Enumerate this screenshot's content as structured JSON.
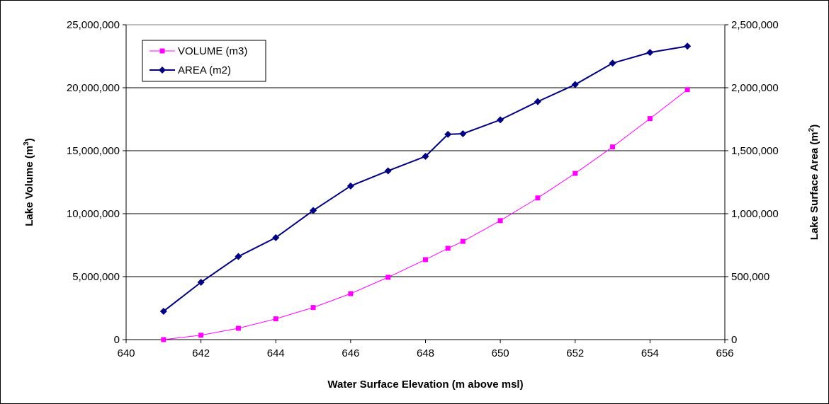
{
  "chart_data": {
    "type": "line",
    "xlabel": "Water Surface Elevation (m above msl)",
    "ylabel_left": {
      "main": "Lake Volume (m",
      "sup": "3",
      "tail": ")"
    },
    "ylabel_right": {
      "main": "Lake Surface Area (m",
      "sup": "2",
      "tail": ")"
    },
    "xlim": [
      640,
      656
    ],
    "x_ticks": [
      640,
      642,
      644,
      646,
      648,
      650,
      652,
      654,
      656
    ],
    "x_tick_labels": [
      "640",
      "642",
      "644",
      "646",
      "648",
      "650",
      "652",
      "654",
      "656"
    ],
    "ylim_left": [
      0,
      25000000
    ],
    "y_left_ticks": [
      0,
      5000000,
      10000000,
      15000000,
      20000000,
      25000000
    ],
    "y_left_tick_labels": [
      "0",
      "5,000,000",
      "10,000,000",
      "15,000,000",
      "20,000,000",
      "25,000,000"
    ],
    "ylim_right": [
      0,
      2500000
    ],
    "y_right_ticks": [
      0,
      500000,
      1000000,
      1500000,
      2000000,
      2500000
    ],
    "y_right_tick_labels": [
      "0",
      "500,000",
      "1,000,000",
      "1,500,000",
      "2,000,000",
      "2,500,000"
    ],
    "grid": "horizontal",
    "legend_position": "top-left",
    "series": [
      {
        "name": "VOLUME (m3)",
        "axis": "left",
        "color": "#ff00ff",
        "marker": "square",
        "x": [
          641,
          642,
          643,
          644,
          645,
          646,
          647,
          648,
          648.6,
          649,
          650,
          651,
          652,
          653,
          654,
          655
        ],
        "y": [
          0,
          350000,
          900000,
          1650000,
          2550000,
          3650000,
          4950000,
          6350000,
          7250000,
          7800000,
          9450000,
          11250000,
          13200000,
          15300000,
          17550000,
          19850000
        ]
      },
      {
        "name": "AREA (m2)",
        "axis": "right",
        "color": "#000080",
        "marker": "diamond",
        "x": [
          641,
          642,
          643,
          644,
          645,
          646,
          647,
          648,
          648.6,
          649,
          650,
          651,
          652,
          653,
          654,
          655
        ],
        "y": [
          225000,
          455000,
          660000,
          810000,
          1025000,
          1220000,
          1340000,
          1455000,
          1630000,
          1635000,
          1745000,
          1890000,
          2025000,
          2195000,
          2280000,
          2330000
        ]
      }
    ]
  }
}
